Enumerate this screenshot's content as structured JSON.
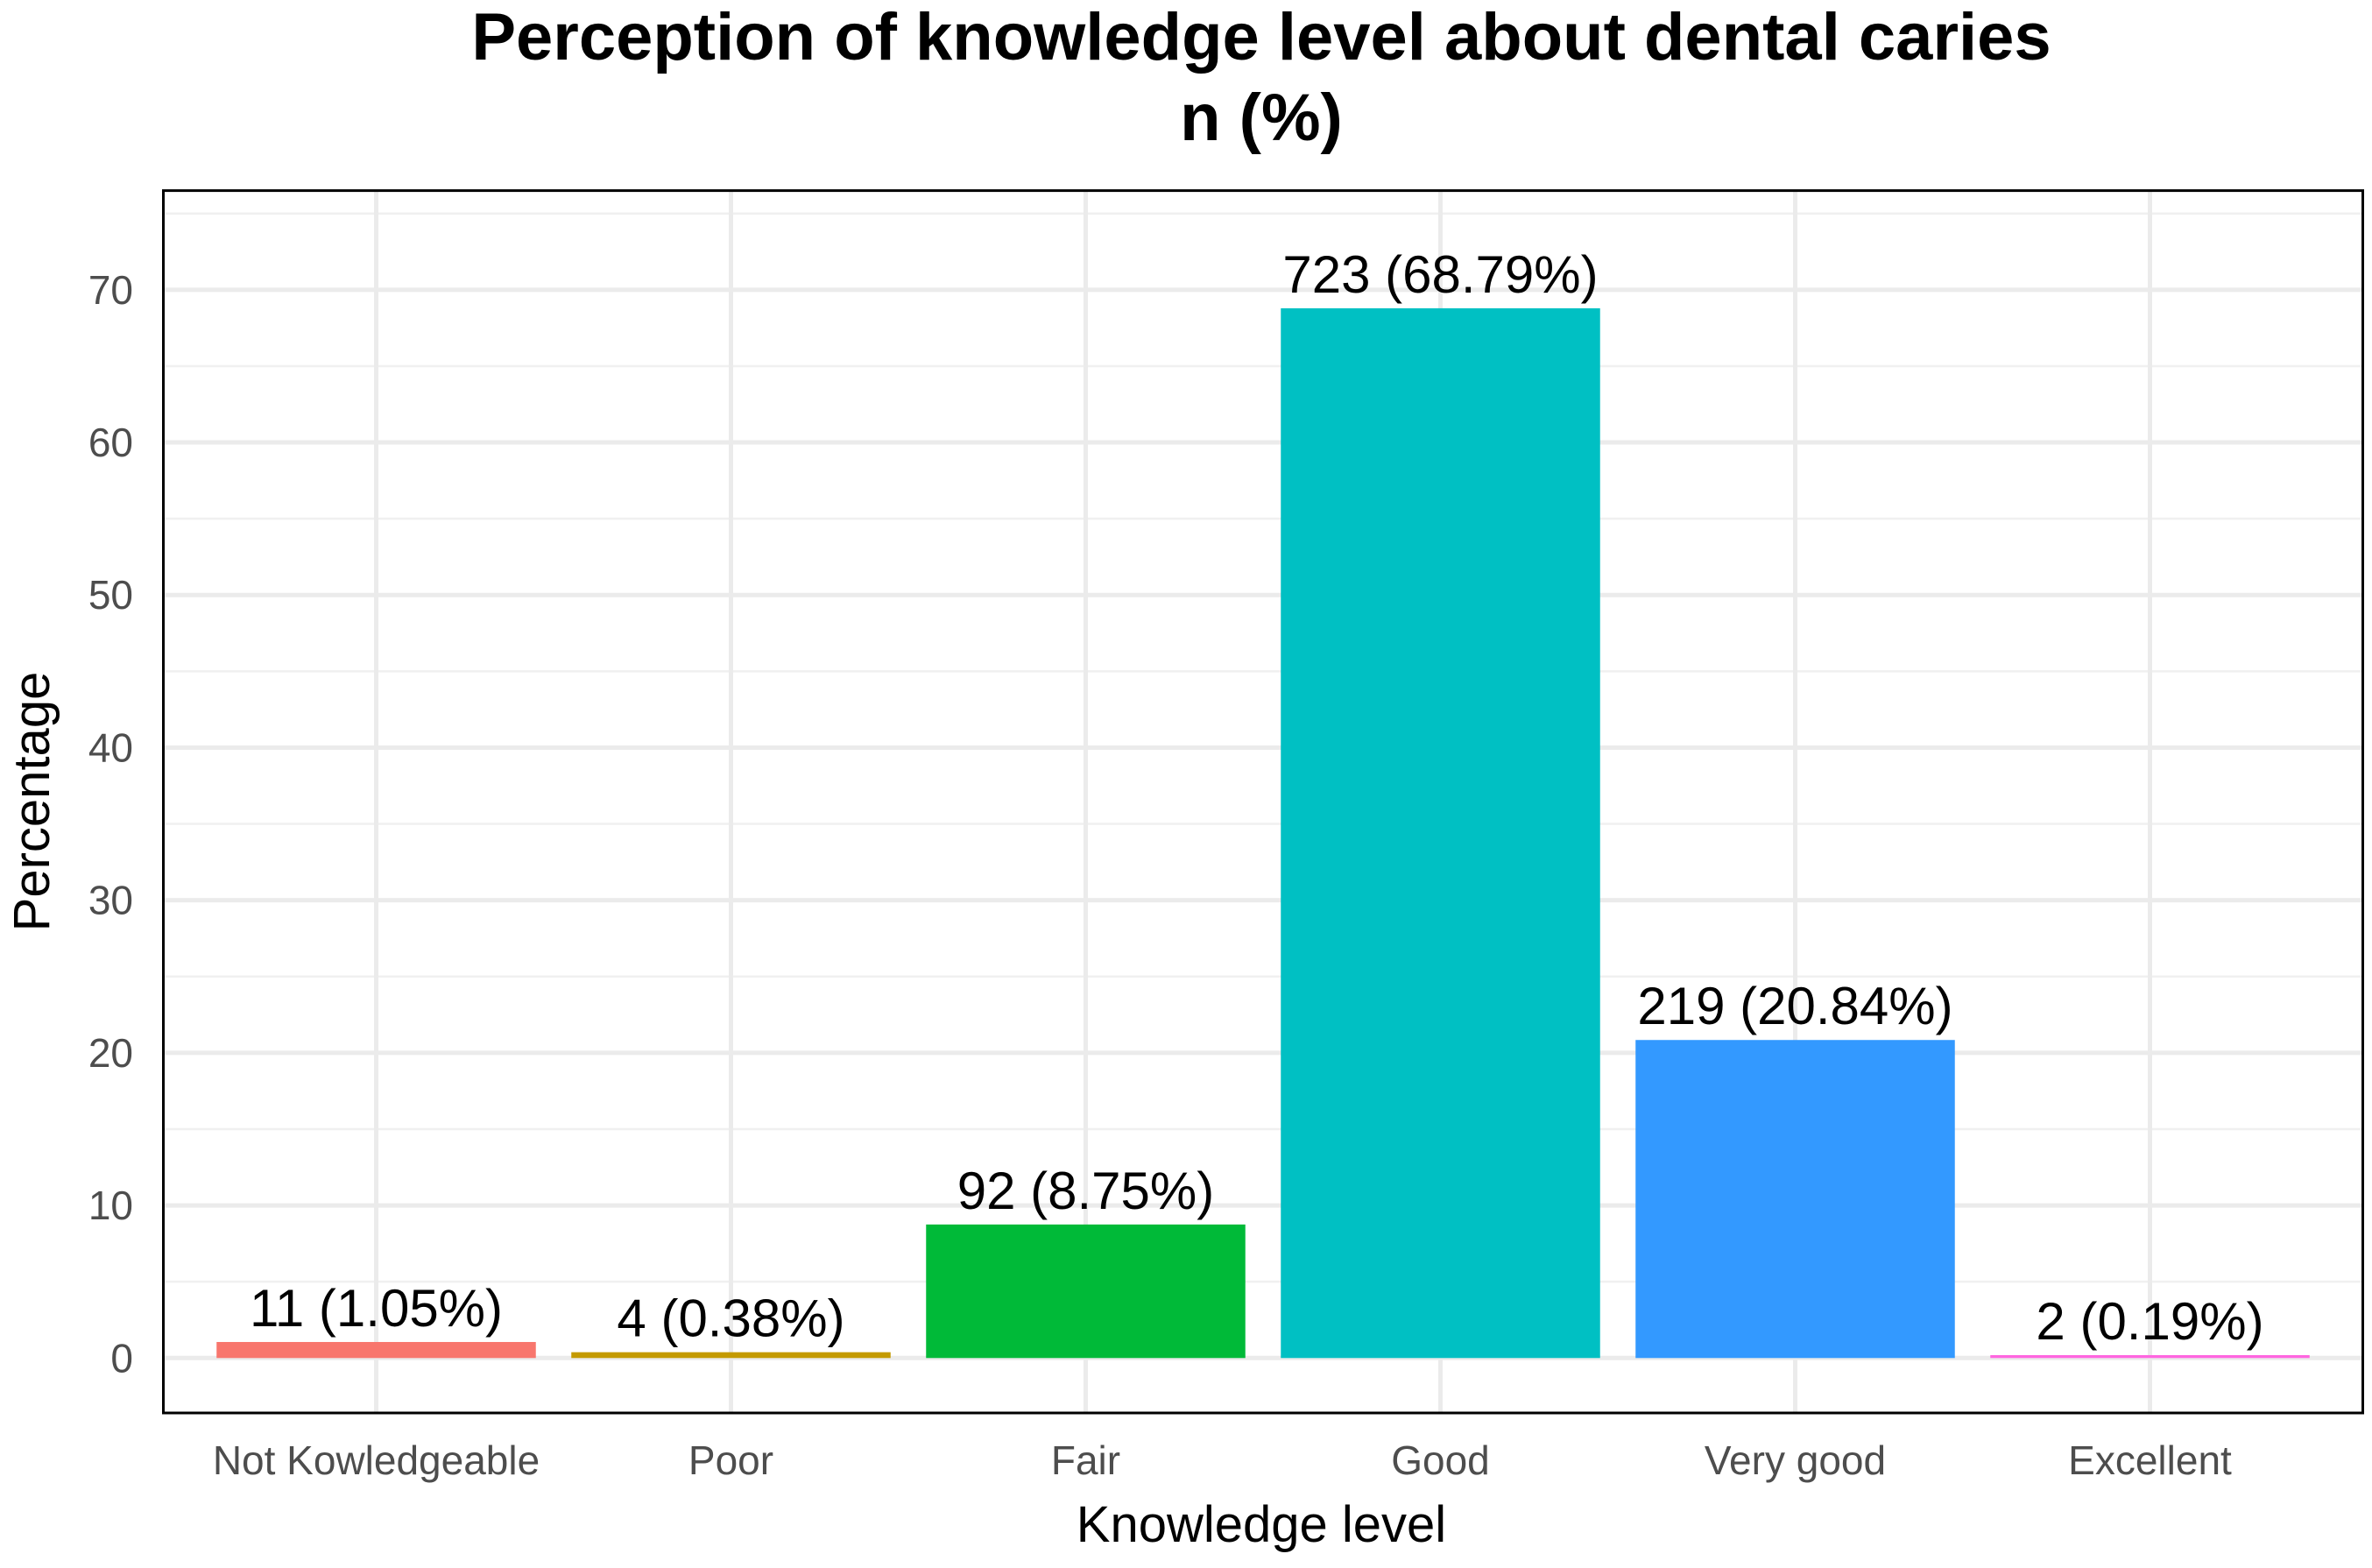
{
  "chart_data": {
    "type": "bar",
    "title": "Perception of knowledge level about dental caries",
    "subtitle": "n (%)",
    "x_label": "Knowledge level",
    "y_label": "Percentage",
    "categories": [
      "Not Kowledgeable",
      "Poor",
      "Fair",
      "Good",
      "Very good",
      "Excellent"
    ],
    "values": [
      1.05,
      0.38,
      8.75,
      68.79,
      20.84,
      0.19
    ],
    "value_labels": [
      "11 (1.05%)",
      "4 (0.38%)",
      "92 (8.75%)",
      "723 (68.79%)",
      "219 (20.84%)",
      "2 (0.19%)"
    ],
    "colors": [
      "#f8766d",
      "#c49a00",
      "#00ba38",
      "#00c0c3",
      "#3399ff",
      "#ff66e0"
    ],
    "ylim": [
      -3.6,
      76.5
    ],
    "yticks": [
      0,
      10,
      20,
      30,
      40,
      50,
      60,
      70
    ],
    "yminor": [
      5,
      15,
      25,
      35,
      45,
      55,
      65,
      75
    ],
    "grid": true
  }
}
